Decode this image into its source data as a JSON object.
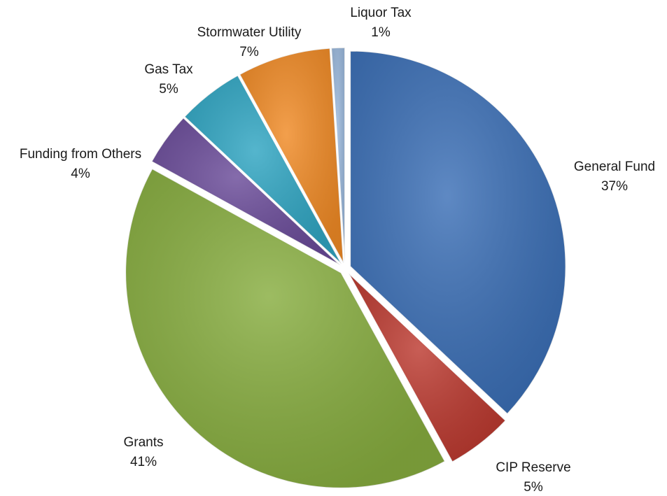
{
  "chart_data": {
    "type": "pie",
    "categories": [
      "General Fund",
      "CIP Reserve",
      "Grants",
      "Funding from Others",
      "Gas Tax",
      "Stormwater Utility",
      "Liquor Tax"
    ],
    "values": [
      37,
      5,
      41,
      4,
      5,
      7,
      1
    ],
    "value_labels": [
      "37%",
      "5%",
      "41%",
      "4%",
      "5%",
      "7%",
      "1%"
    ],
    "colors": [
      "#3b6fb6",
      "#bc3a30",
      "#87ad3f",
      "#6a4b99",
      "#2fa5c2",
      "#f08a25",
      "#9ab8dc"
    ]
  }
}
